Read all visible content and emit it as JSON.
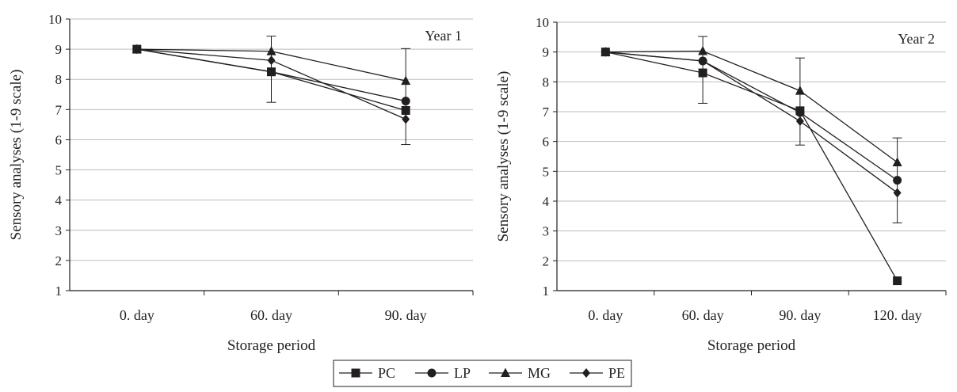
{
  "colors": {
    "ink": "#231f20",
    "grid": "#bcbec0",
    "background": "#ffffff"
  },
  "chart_data": [
    {
      "type": "line",
      "title": "Year 1",
      "xlabel": "Storage period",
      "ylabel": "Sensory analyses (1-9 scale)",
      "categories": [
        "0. day",
        "60. day",
        "90. day"
      ],
      "ylim": [
        1,
        10
      ],
      "yticks": [
        "1",
        "2",
        "3",
        "4",
        "5",
        "6",
        "7",
        "8",
        "9",
        "10"
      ],
      "grid": true,
      "series": [
        {
          "name": "PC",
          "marker": "square",
          "values": [
            9.0,
            8.25,
            6.97
          ]
        },
        {
          "name": "LP",
          "marker": "circle",
          "values": [
            9.0,
            8.25,
            7.28
          ]
        },
        {
          "name": "MG",
          "marker": "triangle",
          "values": [
            9.0,
            8.93,
            7.95
          ]
        },
        {
          "name": "PE",
          "marker": "diamond",
          "values": [
            9.0,
            8.63,
            6.68
          ]
        }
      ],
      "error_bars": [
        {
          "category": "60. day",
          "low": 7.24,
          "high": 9.43
        },
        {
          "category": "90. day",
          "low": 5.84,
          "high": 9.02
        }
      ]
    },
    {
      "type": "line",
      "title": "Year 2",
      "xlabel": "Storage period",
      "ylabel": "Sensory analyses (1-9 scale)",
      "categories": [
        "0. day",
        "60. day",
        "90. day",
        "120. day"
      ],
      "ylim": [
        1,
        10
      ],
      "yticks": [
        "1",
        "2",
        "3",
        "4",
        "5",
        "6",
        "7",
        "8",
        "9",
        "10"
      ],
      "grid": true,
      "series": [
        {
          "name": "PC",
          "marker": "square",
          "values": [
            9.0,
            8.3,
            7.03,
            1.33
          ]
        },
        {
          "name": "LP",
          "marker": "circle",
          "values": [
            9.0,
            8.7,
            6.97,
            4.7
          ]
        },
        {
          "name": "MG",
          "marker": "triangle",
          "values": [
            9.0,
            9.03,
            7.7,
            5.3
          ]
        },
        {
          "name": "PE",
          "marker": "diamond",
          "values": [
            9.0,
            8.7,
            6.68,
            4.28
          ]
        }
      ],
      "error_bars": [
        {
          "category": "60. day",
          "low": 7.28,
          "high": 9.52
        },
        {
          "category": "90. day",
          "low": 5.88,
          "high": 8.8
        },
        {
          "category": "120. day",
          "low": 3.27,
          "high": 6.12
        }
      ]
    }
  ],
  "legend": {
    "position": "bottom-center",
    "items": [
      {
        "name": "PC",
        "marker": "square"
      },
      {
        "name": "LP",
        "marker": "circle"
      },
      {
        "name": "MG",
        "marker": "triangle"
      },
      {
        "name": "PE",
        "marker": "diamond"
      }
    ]
  }
}
